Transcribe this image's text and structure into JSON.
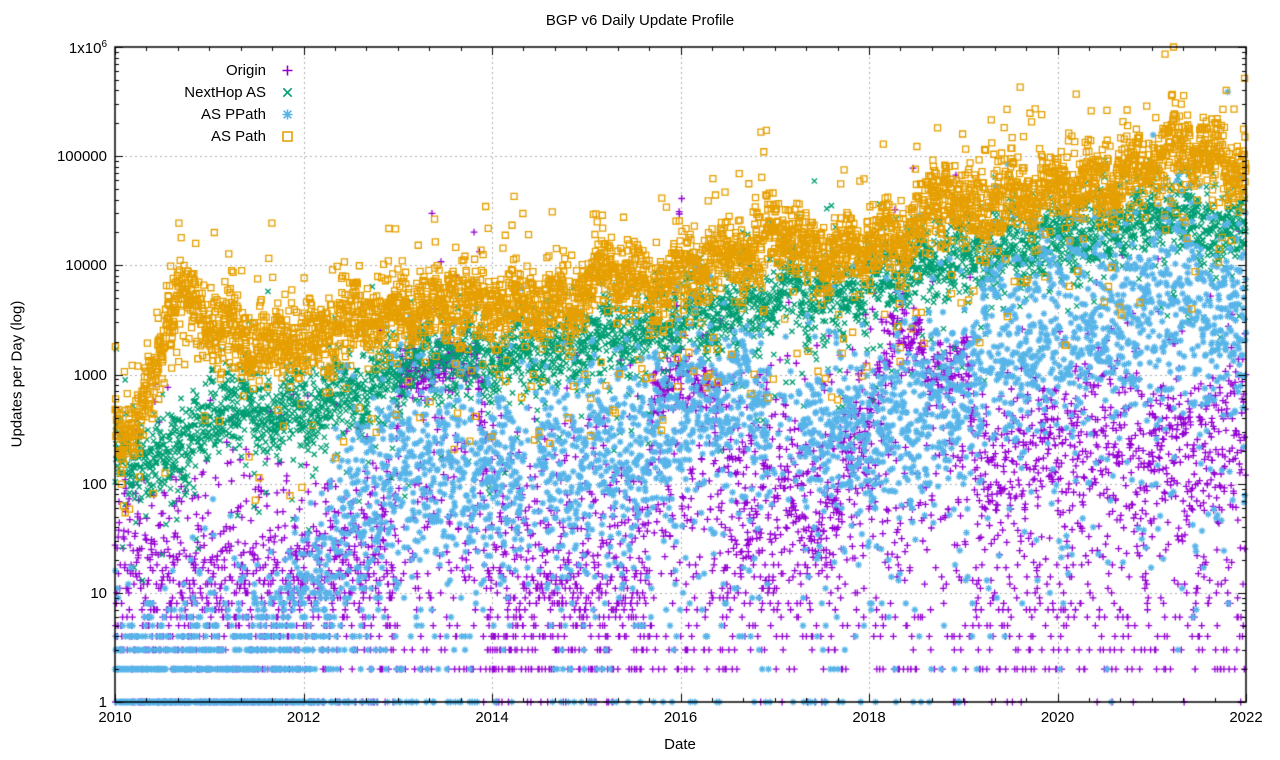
{
  "title": "BGP v6 Daily Update Profile",
  "chart_data": {
    "type": "scatter",
    "title": "BGP v6 Daily Update Profile",
    "xlabel": "Date",
    "ylabel": "Updates per Day (log)",
    "x_range": [
      2010,
      2022
    ],
    "y_range": [
      1,
      1000000
    ],
    "y_log": true,
    "grid": {
      "on": true,
      "color": "#b4b4b4"
    },
    "border_color": "#000000",
    "x_major_ticks": [
      2010,
      2012,
      2014,
      2016,
      2018,
      2020,
      2022
    ],
    "x_minor_per_year": 3,
    "y_major_ticks": [
      {
        "value": 1,
        "label": "1"
      },
      {
        "value": 10,
        "label": "10"
      },
      {
        "value": 100,
        "label": "100"
      },
      {
        "value": 1000,
        "label": "1000"
      },
      {
        "value": 10000,
        "label": "10000"
      },
      {
        "value": 100000,
        "label": "100000"
      },
      {
        "value": 1000000,
        "label": "1x10^6"
      }
    ],
    "legend_position": "top-left",
    "points_per_year": 365,
    "seed": 1337,
    "series": [
      {
        "name": "Origin",
        "slug": "origin",
        "marker": "plus",
        "color": "#9400d3",
        "trend_log10": [
          [
            2010,
            1.05
          ],
          [
            2011.5,
            0.9
          ],
          [
            2012.5,
            1.1
          ],
          [
            2012.95,
            1.3
          ],
          [
            2013.02,
            3.02
          ],
          [
            2013.85,
            3.08
          ],
          [
            2013.95,
            1.6
          ],
          [
            2015.6,
            1.4
          ],
          [
            2015.72,
            2.9
          ],
          [
            2016.35,
            2.95
          ],
          [
            2016.45,
            1.9
          ],
          [
            2017.65,
            1.8
          ],
          [
            2018.25,
            3.35
          ],
          [
            2018.55,
            3.35
          ],
          [
            2018.62,
            3.0
          ],
          [
            2019.05,
            3.05
          ],
          [
            2019.15,
            2.2
          ],
          [
            2019.55,
            2.25
          ],
          [
            2019.9,
            2.45
          ],
          [
            2020.35,
            2.6
          ],
          [
            2021.1,
            2.5
          ],
          [
            2021.6,
            2.45
          ],
          [
            2022,
            2.65
          ]
        ],
        "sigma_log10": [
          [
            2010,
            0.55
          ],
          [
            2012.9,
            0.55
          ],
          [
            2013.02,
            0.12
          ],
          [
            2013.85,
            0.12
          ],
          [
            2013.95,
            0.6
          ],
          [
            2015.6,
            0.6
          ],
          [
            2015.72,
            0.15
          ],
          [
            2016.35,
            0.15
          ],
          [
            2016.45,
            0.6
          ],
          [
            2017.65,
            0.55
          ],
          [
            2018.25,
            0.15
          ],
          [
            2019.05,
            0.15
          ],
          [
            2019.15,
            0.3
          ],
          [
            2019.9,
            0.35
          ],
          [
            2022,
            0.4
          ]
        ],
        "tails": {
          "up_p": 0.04,
          "up_max": 1.6,
          "down_p": 0.06,
          "down_max": 1.6
        },
        "low_scatter": {
          "p": [
            [
              2010,
              0
            ],
            [
              2012.9,
              0
            ],
            [
              2013.0,
              0.38
            ],
            [
              2016.4,
              0.38
            ],
            [
              2016.5,
              0.12
            ],
            [
              2017.6,
              0.12
            ],
            [
              2018.2,
              0.32
            ],
            [
              2019.1,
              0.32
            ],
            [
              2019.2,
              0.42
            ],
            [
              2022,
              0.42
            ]
          ],
          "lo_log10": 0.15,
          "hi_log10": 2.45
        },
        "wobble": [
          0.05,
          1.7,
          0.1,
          0.04,
          4.3,
          0.55
        ],
        "quantize_below": 20
      },
      {
        "name": "NextHop AS",
        "slug": "nexthop-as",
        "marker": "cross",
        "color": "#009e73",
        "trend_log10": [
          [
            2010,
            2.25
          ],
          [
            2010.4,
            2.2
          ],
          [
            2010.8,
            2.4
          ],
          [
            2011.2,
            2.75
          ],
          [
            2011.6,
            2.65
          ],
          [
            2012,
            2.7
          ],
          [
            2012.4,
            2.8
          ],
          [
            2012.8,
            2.9
          ],
          [
            2013.2,
            3.15
          ],
          [
            2013.6,
            3.2
          ],
          [
            2014,
            3.1
          ],
          [
            2014.4,
            3.2
          ],
          [
            2014.8,
            3.25
          ],
          [
            2015.2,
            3.4
          ],
          [
            2015.6,
            3.35
          ],
          [
            2016,
            3.5
          ],
          [
            2016.4,
            3.55
          ],
          [
            2016.8,
            3.65
          ],
          [
            2017.2,
            3.8
          ],
          [
            2017.6,
            3.7
          ],
          [
            2018,
            3.85
          ],
          [
            2018.4,
            3.95
          ],
          [
            2018.8,
            4.05
          ],
          [
            2019.2,
            4.1
          ],
          [
            2019.6,
            4.2
          ],
          [
            2020,
            4.25
          ],
          [
            2020.4,
            4.3
          ],
          [
            2020.8,
            4.4
          ],
          [
            2021.2,
            4.5
          ],
          [
            2021.6,
            4.35
          ],
          [
            2022,
            4.3
          ]
        ],
        "sigma_log10": 0.18,
        "tails": {
          "up_p": 0.02,
          "up_max": 0.7,
          "down_p": 0.035,
          "down_max": 1.0
        },
        "wobble": [
          0.07,
          2.1,
          0.3,
          0.05,
          5.3,
          0.8
        ],
        "quantize_below": 20
      },
      {
        "name": "AS PPath",
        "slug": "as-ppath",
        "marker": "asterisk",
        "color": "#56b4e9",
        "trend_log10": [
          [
            2010,
            0.3
          ],
          [
            2010.8,
            0.3
          ],
          [
            2011.4,
            0.35
          ],
          [
            2011.8,
            0.6
          ],
          [
            2012.1,
            0.9
          ],
          [
            2012.4,
            1.5
          ],
          [
            2012.7,
            1.9
          ],
          [
            2013,
            2.15
          ],
          [
            2013.5,
            2.2
          ],
          [
            2014,
            2.1
          ],
          [
            2014.5,
            2.2
          ],
          [
            2015,
            2.3
          ],
          [
            2015.5,
            2.35
          ],
          [
            2016,
            2.55
          ],
          [
            2016.3,
            2.85
          ],
          [
            2016.8,
            2.8
          ],
          [
            2017.1,
            2.2
          ],
          [
            2017.4,
            2.45
          ],
          [
            2018,
            2.5
          ],
          [
            2018.5,
            2.6
          ],
          [
            2019,
            2.85
          ],
          [
            2019.3,
            3.35
          ],
          [
            2019.7,
            3.25
          ],
          [
            2020,
            3.35
          ],
          [
            2020.4,
            3.5
          ],
          [
            2020.8,
            3.6
          ],
          [
            2021.2,
            3.7
          ],
          [
            2021.6,
            3.55
          ],
          [
            2022,
            3.55
          ]
        ],
        "sigma_log10": [
          [
            2010,
            0.3
          ],
          [
            2011.5,
            0.35
          ],
          [
            2012.2,
            0.5
          ],
          [
            2013,
            0.5
          ],
          [
            2016,
            0.45
          ],
          [
            2016.3,
            0.35
          ],
          [
            2017,
            0.35
          ],
          [
            2019,
            0.45
          ],
          [
            2019.3,
            0.55
          ],
          [
            2021,
            0.5
          ],
          [
            2022,
            0.5
          ]
        ],
        "tails": {
          "up_p": 0.04,
          "up_max": 1.3,
          "down_p": 0.15,
          "down_max": 2.6
        },
        "gaps": [
          [
            2014.33,
            2014.5,
            0.3
          ],
          [
            2016.95,
            2017.3,
            0.3
          ]
        ],
        "wobble": [
          0.08,
          1.9,
          0.6,
          0.05,
          4.7,
          0.2
        ],
        "quantize_below": 20
      },
      {
        "name": "AS Path",
        "slug": "as-path",
        "marker": "square",
        "color": "#e69f00",
        "trend_log10": [
          [
            2010,
            2.45
          ],
          [
            2010.3,
            2.6
          ],
          [
            2010.55,
            3.5
          ],
          [
            2010.7,
            3.75
          ],
          [
            2010.9,
            3.55
          ],
          [
            2011.2,
            3.35
          ],
          [
            2011.6,
            3.25
          ],
          [
            2012,
            3.3
          ],
          [
            2012.4,
            3.45
          ],
          [
            2012.8,
            3.55
          ],
          [
            2013.2,
            3.6
          ],
          [
            2013.6,
            3.65
          ],
          [
            2014,
            3.6
          ],
          [
            2014.4,
            3.65
          ],
          [
            2014.8,
            3.6
          ],
          [
            2015.2,
            3.95
          ],
          [
            2015.5,
            3.85
          ],
          [
            2015.8,
            3.8
          ],
          [
            2016.2,
            4.0
          ],
          [
            2016.6,
            4.05
          ],
          [
            2016.9,
            4.2
          ],
          [
            2017,
            4.35
          ],
          [
            2017.3,
            4.15
          ],
          [
            2017.6,
            4.1
          ],
          [
            2018,
            4.2
          ],
          [
            2018.4,
            4.25
          ],
          [
            2018.7,
            4.6
          ],
          [
            2018.85,
            4.7
          ],
          [
            2019,
            4.45
          ],
          [
            2019.4,
            4.6
          ],
          [
            2019.8,
            4.7
          ],
          [
            2020.2,
            4.7
          ],
          [
            2020.6,
            4.8
          ],
          [
            2021,
            4.95
          ],
          [
            2021.35,
            5.1
          ],
          [
            2021.7,
            5.0
          ],
          [
            2022,
            4.8
          ]
        ],
        "sigma_log10": 0.17,
        "tails": {
          "up_p": 0.035,
          "up_max": 0.8,
          "down_p": 0.045,
          "down_max": 1.3
        },
        "wobble": [
          0.07,
          2.3,
          0.45,
          0.05,
          5.9,
          0.15
        ],
        "quantize_below": 20
      }
    ]
  }
}
